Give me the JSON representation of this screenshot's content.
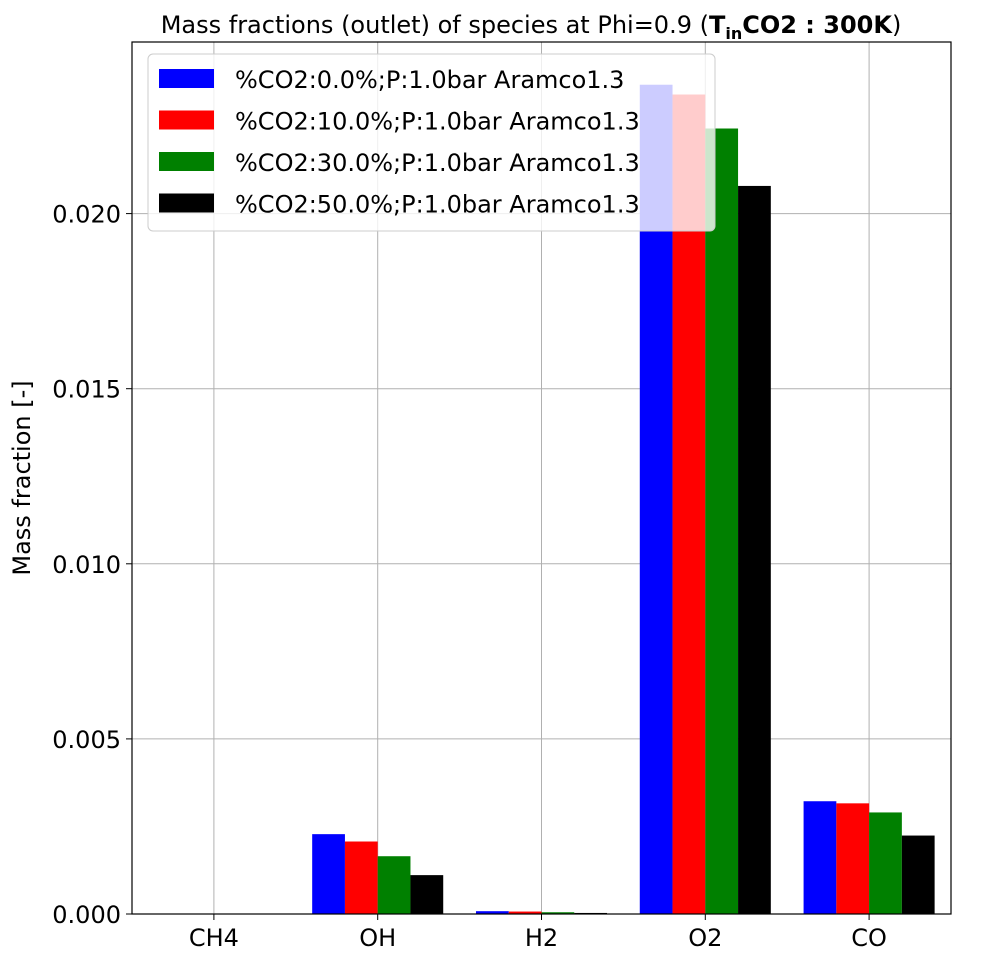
{
  "chart_data": {
    "type": "bar",
    "title": "Mass fractions (outlet) of species at Phi=0.9  (",
    "title_math": {
      "T": "T",
      "sub": "in",
      "rest": "CO2 : 300K",
      "close": ")"
    },
    "xlabel": "",
    "ylabel": "Mass fraction [-]",
    "categories": [
      "CH4",
      "OH",
      "H2",
      "O2",
      "CO"
    ],
    "ylim": [
      0,
      0.0249
    ],
    "yticks": [
      0.0,
      0.005,
      0.01,
      0.015,
      0.02
    ],
    "ytick_labels": [
      "0.000",
      "0.005",
      "0.010",
      "0.015",
      "0.020"
    ],
    "grid": true,
    "legend_position": "top-left",
    "series": [
      {
        "name": "%CO2:0.0%;P:1.0bar Aramco1.3",
        "color": "#0000ff",
        "values": [
          0.0,
          0.00228,
          8e-05,
          0.02368,
          0.00322
        ]
      },
      {
        "name": "%CO2:10.0%;P:1.0bar Aramco1.3",
        "color": "#ff0000",
        "values": [
          0.0,
          0.00207,
          7e-05,
          0.0234,
          0.00316
        ]
      },
      {
        "name": "%CO2:30.0%;P:1.0bar Aramco1.3",
        "color": "#008000",
        "values": [
          0.0,
          0.00165,
          5e-05,
          0.02243,
          0.0029
        ]
      },
      {
        "name": "%CO2:50.0%;P:1.0bar Aramco1.3",
        "color": "#000000",
        "values": [
          0.0,
          0.00111,
          3e-05,
          0.02079,
          0.00224
        ]
      }
    ]
  }
}
